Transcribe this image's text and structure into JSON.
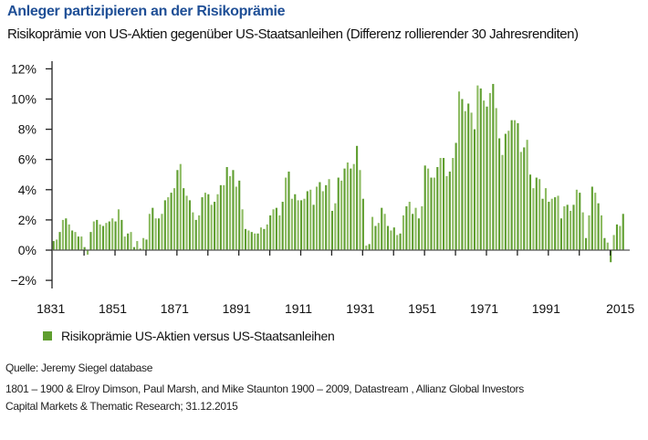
{
  "header": {
    "title": "Anleger partizipieren an der Risikoprämie",
    "subtitle": "Risikoprämie von US-Aktien gegenüber US-Staatsanleihen (Differenz rollierender 30 Jahresrenditen)"
  },
  "colors": {
    "title": "#1f4f96",
    "bar": "#5f9e2f",
    "bar_light": "#8dbb62"
  },
  "chart_data": {
    "type": "bar",
    "title": "Anleger partizipieren an der Risikoprämie",
    "xlabel": "",
    "ylabel": "",
    "ylim": [
      -2,
      12
    ],
    "x_start": 1831,
    "x_end": 2015,
    "yticks": [
      12,
      10,
      8,
      6,
      4,
      2,
      0,
      -2
    ],
    "ytick_labels": [
      "12%",
      "10%",
      "8%",
      "6%",
      "4%",
      "2%",
      "0%",
      "−2%"
    ],
    "xtick_labels": [
      "1831",
      "1851",
      "1871",
      "1891",
      "1911",
      "1931",
      "1951",
      "1971",
      "1991",
      "2015"
    ],
    "grid": false,
    "legend": "bottom-left",
    "series": [
      {
        "name": "Risikoprämie US-Aktien versus US-Staatsanleihen",
        "values": [
          0.6,
          0.7,
          1.2,
          2.0,
          2.1,
          1.7,
          1.3,
          1.2,
          0.9,
          0.9,
          0.2,
          -0.3,
          1.2,
          1.9,
          2.0,
          1.7,
          1.6,
          1.8,
          1.9,
          2.1,
          1.9,
          2.7,
          2.0,
          0.9,
          1.1,
          1.2,
          0.2,
          0.6,
          0.1,
          0.8,
          0.7,
          2.4,
          2.8,
          2.1,
          2.1,
          2.4,
          3.3,
          3.5,
          3.8,
          4.1,
          5.3,
          5.7,
          4.1,
          3.6,
          3.3,
          2.5,
          2.0,
          2.3,
          3.5,
          3.8,
          3.7,
          3.0,
          3.2,
          3.7,
          4.3,
          4.3,
          5.5,
          4.9,
          5.3,
          4.2,
          4.6,
          2.7,
          1.4,
          1.3,
          1.2,
          1.1,
          1.1,
          1.5,
          1.4,
          1.7,
          2.3,
          2.7,
          2.8,
          2.3,
          3.2,
          4.8,
          5.2,
          3.4,
          3.7,
          3.3,
          3.3,
          3.4,
          3.9,
          4.0,
          3.0,
          4.2,
          4.5,
          3.9,
          4.3,
          4.7,
          2.6,
          3.1,
          4.8,
          4.6,
          5.4,
          5.8,
          5.4,
          5.7,
          6.9,
          5.3,
          3.4,
          0.3,
          0.4,
          2.2,
          1.6,
          1.8,
          2.8,
          2.4,
          1.6,
          1.3,
          1.5,
          1.0,
          1.1,
          2.3,
          2.9,
          3.2,
          2.4,
          2.8,
          2.1,
          2.9,
          5.6,
          5.4,
          4.8,
          4.8,
          5.5,
          6.1,
          6.1,
          4.9,
          5.2,
          6.1,
          7.1,
          10.5,
          10.0,
          9.2,
          9.7,
          9.1,
          8.0,
          10.9,
          10.7,
          9.9,
          9.5,
          10.4,
          11.0,
          9.4,
          7.4,
          6.3,
          7.7,
          7.9,
          8.6,
          8.6,
          8.4,
          6.5,
          6.8,
          7.3,
          5.0,
          4.1,
          4.8,
          4.7,
          3.4,
          4.1,
          3.2,
          3.4,
          3.5,
          3.6,
          2.1,
          2.9,
          3.0,
          2.6,
          3.0,
          4.0,
          3.8,
          2.5,
          0.8,
          2.3,
          4.2,
          3.8,
          3.1,
          2.3,
          0.8,
          0.5,
          -0.8,
          1.0,
          1.7,
          1.6,
          2.4
        ]
      }
    ]
  },
  "legend": {
    "label": "Risikoprämie US-Aktien versus US-Staatsanleihen"
  },
  "source": {
    "line1": "Quelle: Jeremy Siegel database",
    "line2": "1801 – 1900 & Elroy Dimson, Paul Marsh, and Mike Staunton 1900 – 2009, Datastream , Allianz Global Investors",
    "line3": "Capital Markets & Thematic Research; 31.12.2015"
  }
}
